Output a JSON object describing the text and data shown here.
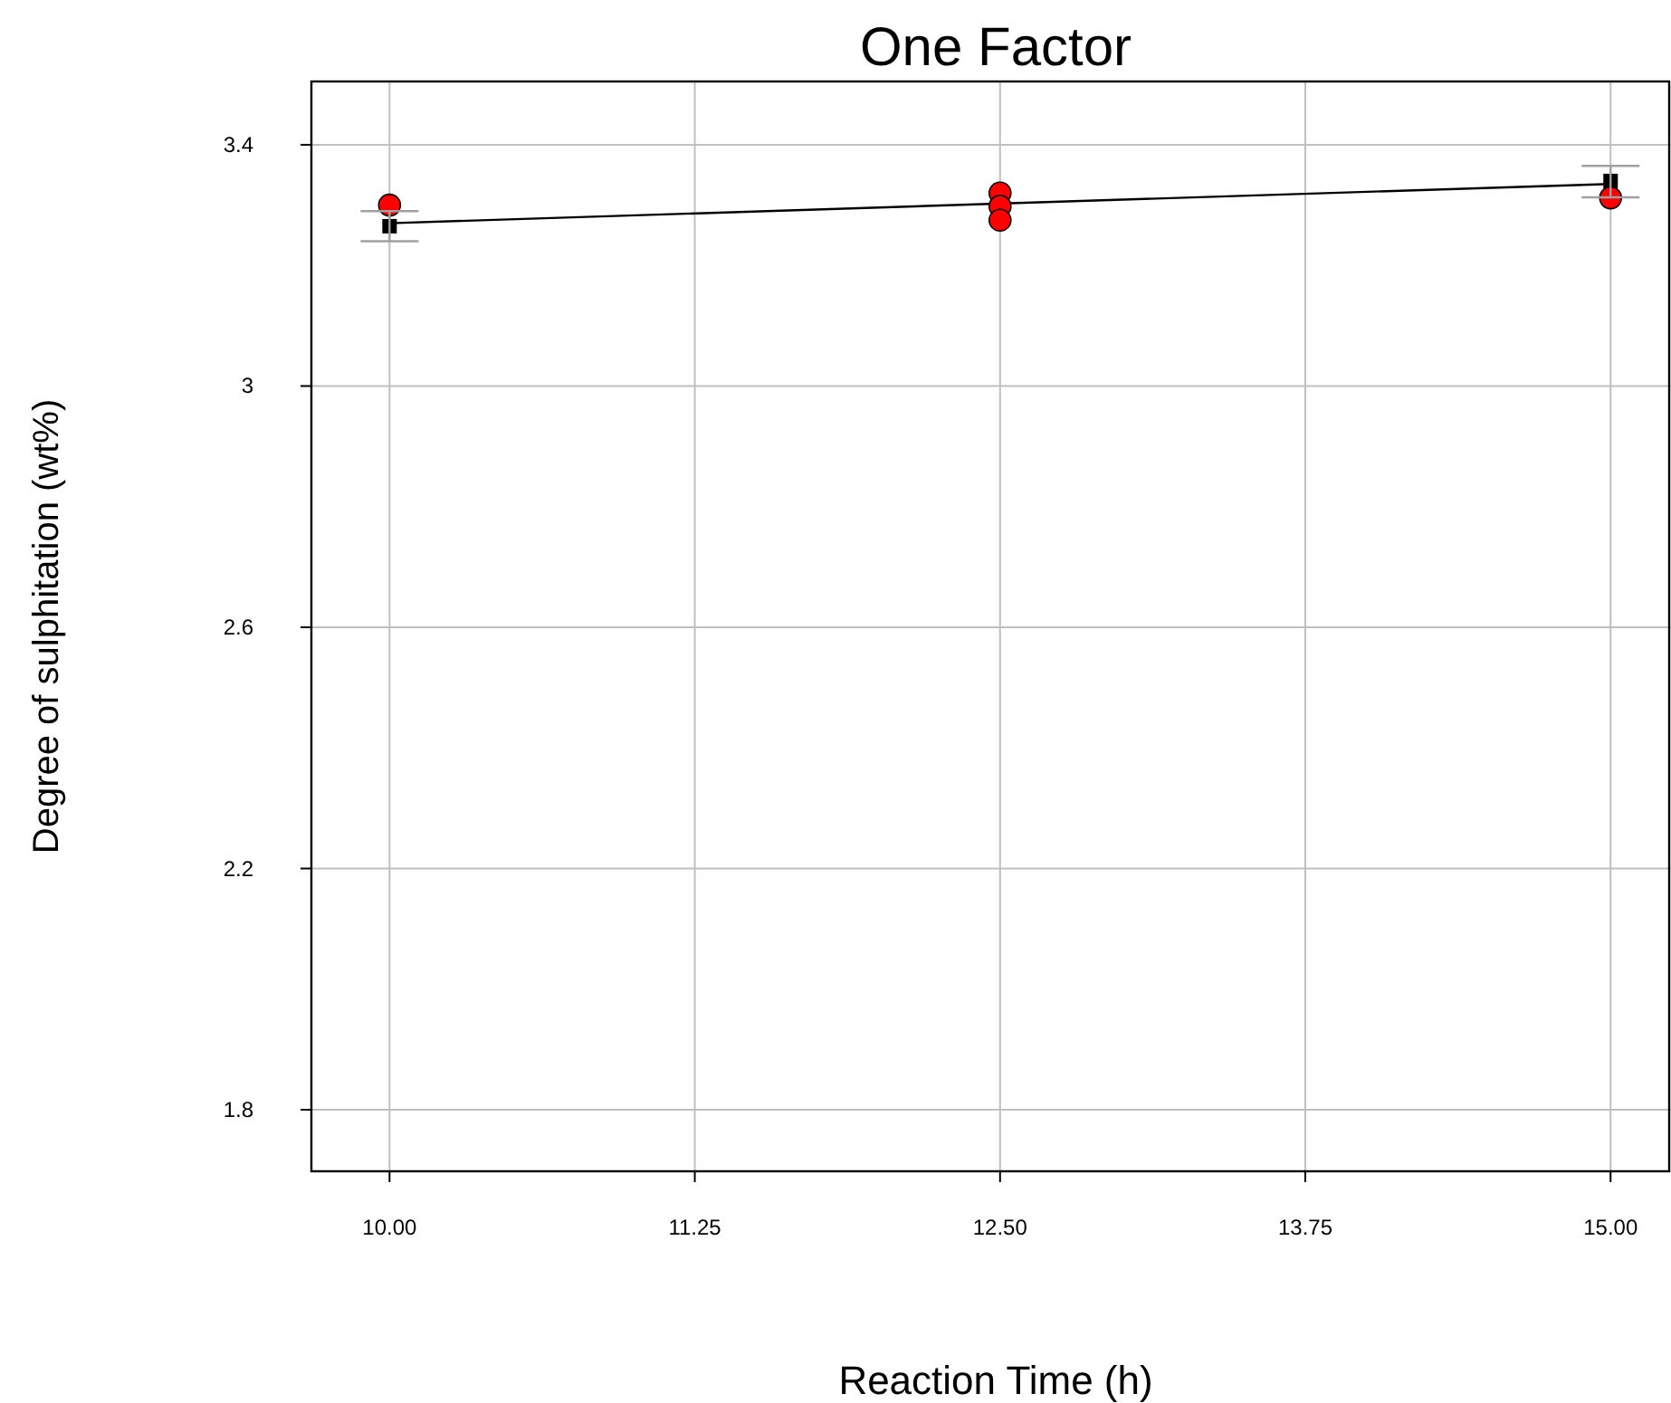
{
  "chart_data": {
    "type": "scatter",
    "title": "One Factor",
    "xlabel": "Reaction Time (h)",
    "ylabel": "Degree of sulphitation (wt%)",
    "xlim": [
      9.68,
      15.24
    ],
    "xticks": [
      {
        "value": 10,
        "label": "10.00"
      },
      {
        "value": 11.25,
        "label": "11.25"
      },
      {
        "value": 12.5,
        "label": "12.50"
      },
      {
        "value": 13.75,
        "label": "13.75"
      },
      {
        "value": 15,
        "label": "15.00"
      }
    ],
    "ylim": [
      1.698,
      3.505
    ],
    "yticks": [
      1.8,
      2.2,
      2.6,
      3,
      3.4
    ],
    "grid": true,
    "series": [
      {
        "type": "line",
        "color": "#000000",
        "x": [
          10,
          15
        ],
        "values": [
          3.27,
          3.335
        ],
        "marker": "none",
        "line_style": "solid"
      },
      {
        "type": "scatter",
        "color": "#000000",
        "x": [
          10,
          15
        ],
        "values": [
          3.265,
          3.34
        ],
        "marker": "square",
        "errors": [
          [
            3.24,
            3.29
          ],
          [
            3.313,
            3.365
          ]
        ]
      },
      {
        "type": "scatter",
        "color": "#ff0000",
        "x": [
          10,
          12.5,
          12.5,
          12.5,
          15
        ],
        "values": [
          3.3,
          3.32,
          3.298,
          3.275,
          3.312
        ],
        "marker": "circle"
      }
    ]
  }
}
